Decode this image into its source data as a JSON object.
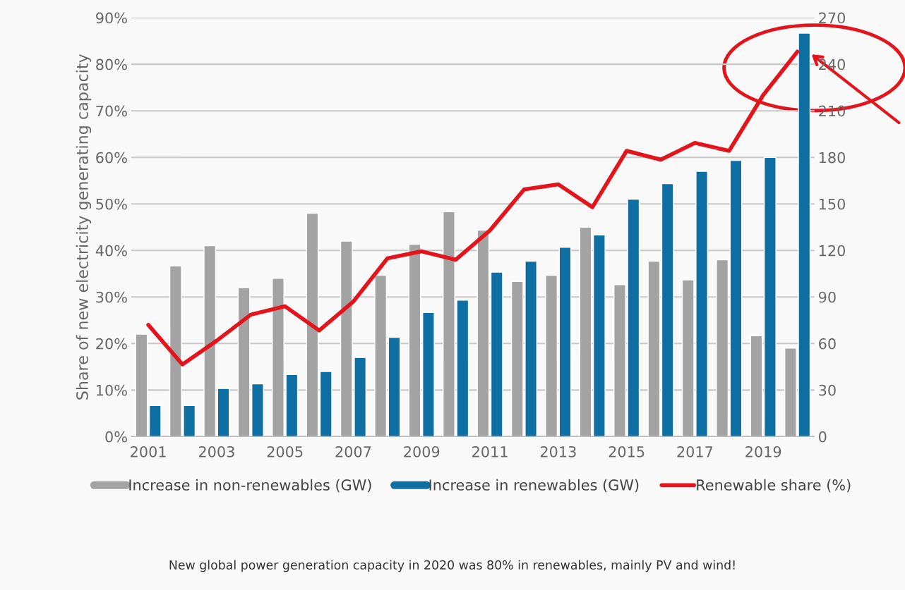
{
  "chart_data": {
    "type": "bar",
    "categories": [
      "2001",
      null,
      "2003",
      null,
      "2005",
      null,
      "2007",
      null,
      "2009",
      null,
      "2011",
      null,
      "2013",
      null,
      "2015",
      null,
      "2017",
      null,
      "2019",
      null
    ],
    "ylabel": "Share of new electricity generating capacity",
    "series": [
      {
        "name": "Increase in non-renewables (GW)",
        "color": "#a3a3a3",
        "axis": "y2",
        "values": [
          66,
          110,
          123,
          96,
          102,
          144,
          126,
          104,
          124,
          145,
          133,
          100,
          104,
          135,
          98,
          113,
          101,
          114,
          65,
          57
        ]
      },
      {
        "name": "Increase in renewables (GW)",
        "color": "#0f6fa3",
        "axis": "y2",
        "values": [
          20,
          20,
          31,
          34,
          40,
          42,
          51,
          64,
          80,
          88,
          106,
          113,
          122,
          130,
          153,
          163,
          171,
          178,
          180,
          260
        ]
      },
      {
        "name": "Renewable share (%)",
        "type": "line",
        "color": "#e3141b",
        "axis": "y",
        "marker": "none",
        "values": [
          24,
          15.5,
          20.6,
          26.2,
          28,
          22.8,
          29,
          38.3,
          39.8,
          38,
          44.3,
          53.1,
          54.2,
          49.3,
          61.4,
          59.5,
          63.1,
          61.4,
          73.4,
          82.7
        ]
      }
    ],
    "ylim": [
      0,
      90
    ],
    "yticks": [
      {
        "value": 0,
        "label": "0%"
      },
      {
        "value": 10,
        "label": "10%"
      },
      {
        "value": 20,
        "label": "20%"
      },
      {
        "value": 30,
        "label": "30%"
      },
      {
        "value": 40,
        "label": "40%"
      },
      {
        "value": 50,
        "label": "50%"
      },
      {
        "value": 60,
        "label": "60%"
      },
      {
        "value": 70,
        "label": "70%"
      },
      {
        "value": 80,
        "label": "80%"
      },
      {
        "value": 90,
        "label": "90%"
      }
    ],
    "y2lim": [
      0,
      270
    ],
    "y2ticks": [
      0,
      30,
      60,
      90,
      120,
      150,
      180,
      210,
      240,
      270
    ],
    "grid": "y",
    "legend": "bottom",
    "annotations": [
      "New global power generation capacity in 2020 was 80% in renewables, mainly PV and wind!"
    ]
  }
}
